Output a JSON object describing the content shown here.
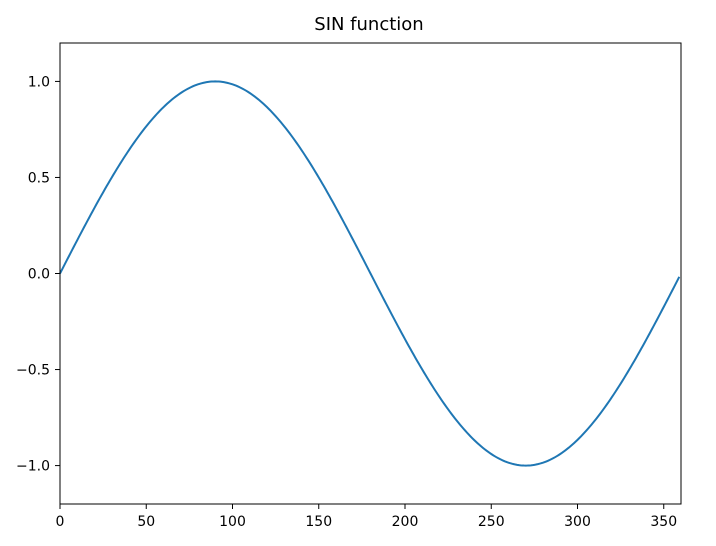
{
  "chart_data": {
    "type": "line",
    "title": "SIN function",
    "xlabel": "",
    "ylabel": "",
    "xlim": [
      0,
      360
    ],
    "ylim": [
      -1.2,
      1.2
    ],
    "xticks": [
      0,
      50,
      100,
      150,
      200,
      250,
      300,
      350
    ],
    "yticks": [
      1.0,
      0.5,
      0.0,
      -0.5,
      -1.0
    ],
    "ytick_labels": [
      "1.0",
      "0.5",
      "0.0",
      "−0.5",
      "−1.0"
    ],
    "grid": false,
    "series": [
      {
        "color": "#1f77b4",
        "x": [
          0,
          15,
          30,
          45,
          60,
          75,
          90,
          105,
          120,
          135,
          150,
          165,
          180,
          195,
          210,
          225,
          240,
          255,
          270,
          285,
          300,
          315,
          330,
          345,
          359
        ],
        "y": [
          0.0,
          0.259,
          0.5,
          0.707,
          0.866,
          0.966,
          1.0,
          0.966,
          0.866,
          0.707,
          0.5,
          0.259,
          0.0,
          -0.259,
          -0.5,
          -0.707,
          -0.866,
          -0.966,
          -1.0,
          -0.966,
          -0.866,
          -0.707,
          -0.5,
          -0.259,
          -0.017
        ]
      }
    ]
  }
}
